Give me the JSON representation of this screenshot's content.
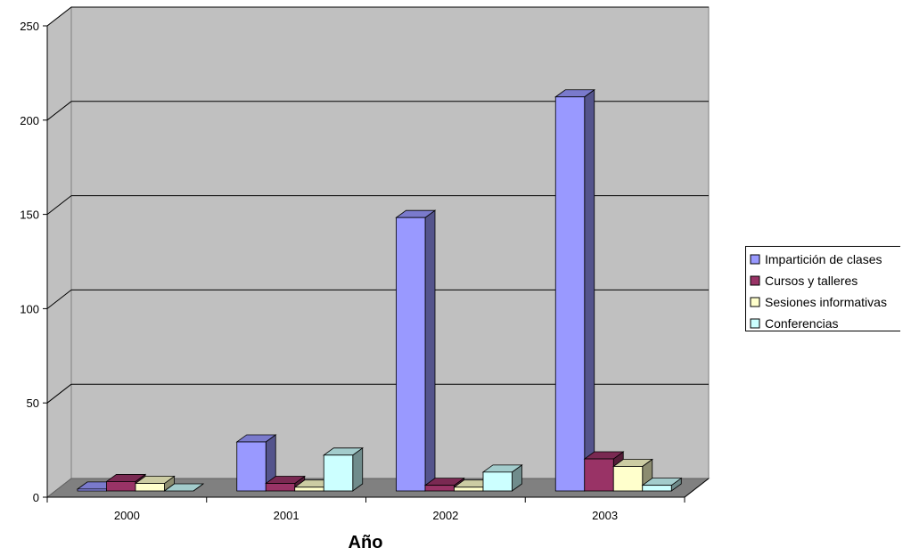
{
  "chart_data": {
    "type": "bar",
    "title": "",
    "xlabel": "Año",
    "ylabel": "",
    "ylim": [
      0,
      250
    ],
    "yticks": [
      0,
      50,
      100,
      150,
      200,
      250
    ],
    "grid": true,
    "legend_position": "right",
    "categories": [
      "2000",
      "2001",
      "2002",
      "2003"
    ],
    "series": [
      {
        "name": "Impartición de clases",
        "color": "#9999ff",
        "values": [
          1,
          26,
          145,
          209
        ]
      },
      {
        "name": "Cursos y talleres",
        "color": "#993366",
        "values": [
          5,
          4,
          3,
          17
        ]
      },
      {
        "name": "Sesiones informativas",
        "color": "#ffffcc",
        "values": [
          4,
          2,
          2,
          13
        ]
      },
      {
        "name": "Conferencias",
        "color": "#ccffff",
        "values": [
          0,
          19,
          10,
          3
        ]
      }
    ]
  }
}
